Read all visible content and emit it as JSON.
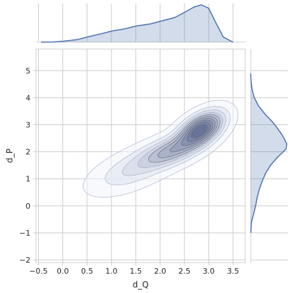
{
  "chart_data": {
    "type": "kde_joint",
    "title": "",
    "xlabel": "d_Q",
    "ylabel": "d_P",
    "xlim": [
      -0.55,
      3.75
    ],
    "ylim": [
      -2.1,
      5.8
    ],
    "xticks": [
      -0.5,
      0.0,
      0.5,
      1.0,
      1.5,
      2.0,
      2.5,
      3.0,
      3.5
    ],
    "xtick_labels": [
      "−0.5",
      "0.0",
      "0.5",
      "1.0",
      "1.5",
      "2.0",
      "2.5",
      "3.0",
      "3.5"
    ],
    "yticks": [
      -2,
      -1,
      0,
      1,
      2,
      3,
      4,
      5
    ],
    "ytick_labels": [
      "−2",
      "−1",
      "0",
      "1",
      "2",
      "3",
      "4",
      "5"
    ],
    "grid": true,
    "fill_color": "#4c72b0",
    "line_color": "#4c72b0",
    "joint_density": {
      "components": [
        {
          "mean": [
            2.85,
            2.85
          ],
          "sd": [
            0.3,
            0.42
          ],
          "rho": 0.5,
          "weight": 0.45
        },
        {
          "mean": [
            2.25,
            2.05
          ],
          "sd": [
            0.42,
            0.4
          ],
          "rho": 0.55,
          "weight": 0.3
        },
        {
          "mean": [
            1.45,
            1.35
          ],
          "sd": [
            0.55,
            0.55
          ],
          "rho": 0.6,
          "weight": 0.25
        }
      ],
      "levels": 10
    },
    "marginal_x": {
      "x": [
        -0.45,
        -0.2,
        0.0,
        0.3,
        0.5,
        0.8,
        1.0,
        1.3,
        1.5,
        1.8,
        2.0,
        2.3,
        2.5,
        2.7,
        2.85,
        3.0,
        3.15,
        3.3,
        3.5
      ],
      "density": [
        0.0,
        0.005,
        0.02,
        0.06,
        0.12,
        0.2,
        0.26,
        0.32,
        0.38,
        0.43,
        0.49,
        0.58,
        0.7,
        0.83,
        0.88,
        0.8,
        0.45,
        0.12,
        0.0
      ]
    },
    "marginal_y": {
      "y": [
        -1.0,
        -0.6,
        -0.3,
        0.0,
        0.3,
        0.6,
        0.9,
        1.2,
        1.5,
        1.8,
        2.1,
        2.3,
        2.6,
        2.9,
        3.1,
        3.4,
        3.7,
        4.0,
        4.3,
        4.6,
        4.9
      ],
      "density": [
        0.0,
        0.02,
        0.08,
        0.14,
        0.18,
        0.24,
        0.32,
        0.42,
        0.56,
        0.76,
        1.0,
        1.02,
        0.9,
        0.74,
        0.62,
        0.4,
        0.22,
        0.1,
        0.04,
        0.01,
        0.0
      ]
    }
  }
}
